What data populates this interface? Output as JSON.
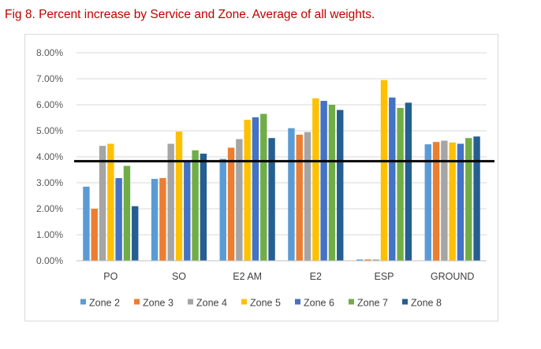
{
  "title": "Fig 8. Percent increase by Service and Zone. Average of all weights.",
  "chart_data": {
    "type": "bar",
    "title": "",
    "xlabel": "",
    "ylabel": "",
    "categories": [
      "PO",
      "SO",
      "E2 AM",
      "E2",
      "ESP",
      "GROUND"
    ],
    "series": [
      {
        "name": "Zone 2",
        "color": "#5b9bd5",
        "values": [
          2.85,
          3.15,
          3.92,
          5.1,
          0.05,
          4.48
        ]
      },
      {
        "name": "Zone 3",
        "color": "#ed7d31",
        "values": [
          2.0,
          3.18,
          4.35,
          4.85,
          0.05,
          4.57
        ]
      },
      {
        "name": "Zone 4",
        "color": "#a5a5a5",
        "values": [
          4.42,
          4.5,
          4.68,
          4.95,
          0.05,
          4.62
        ]
      },
      {
        "name": "Zone 5",
        "color": "#ffc000",
        "values": [
          4.5,
          4.97,
          5.42,
          6.25,
          6.95,
          4.55
        ]
      },
      {
        "name": "Zone 6",
        "color": "#4472c4",
        "values": [
          3.18,
          3.85,
          5.52,
          6.15,
          6.28,
          4.5
        ]
      },
      {
        "name": "Zone 7",
        "color": "#70ad47",
        "values": [
          3.65,
          4.25,
          5.65,
          6.0,
          5.88,
          4.72
        ]
      },
      {
        "name": "Zone 8",
        "color": "#255e91",
        "values": [
          2.1,
          4.12,
          4.72,
          5.8,
          6.08,
          4.78
        ]
      }
    ],
    "y_unit": "%",
    "ylim": [
      0,
      8
    ],
    "y_ticks": [
      "0.00%",
      "1.00%",
      "2.00%",
      "3.00%",
      "4.00%",
      "5.00%",
      "6.00%",
      "7.00%",
      "8.00%"
    ],
    "reference_line": {
      "value": 3.83,
      "color": "#000000"
    },
    "grid": true,
    "legend_position": "bottom"
  }
}
